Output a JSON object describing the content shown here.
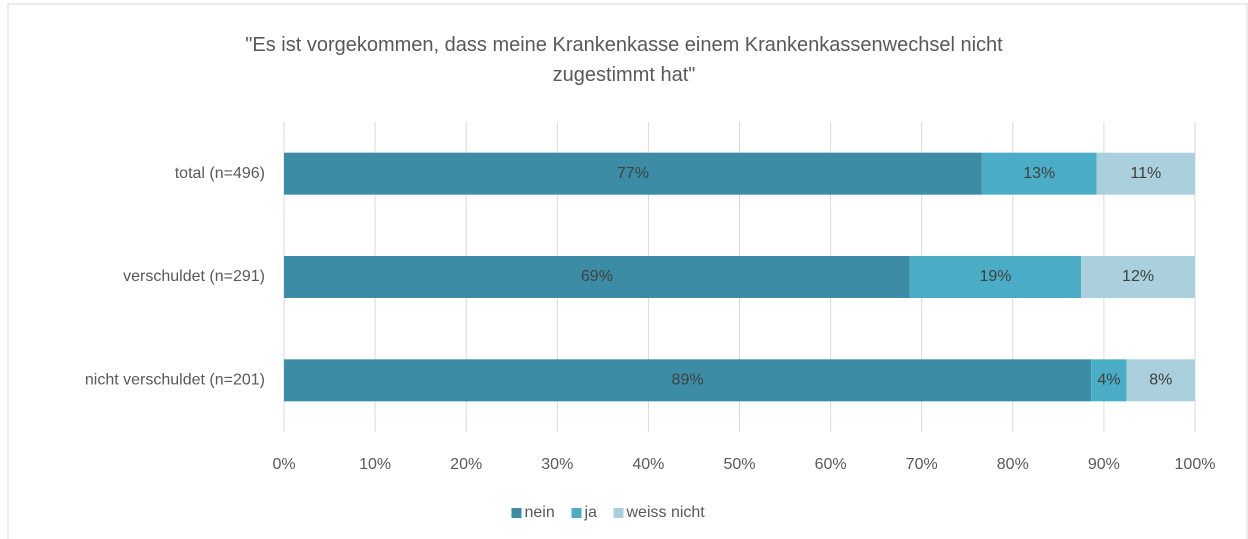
{
  "chart_data": {
    "type": "stacked_bar_horizontal",
    "title": "\"Es ist vorgekommen, dass meine Krankenkasse einem Krankenkassenwechsel nicht zugestimmt hat\"",
    "categories": [
      "total (n=496)",
      "verschuldet (n=291)",
      "nicht verschuldet (n=201)"
    ],
    "series": [
      {
        "name": "nein",
        "color": "#3b8ca4",
        "values": [
          76.6,
          68.7,
          88.6
        ],
        "value_labels": [
          "77%",
          "69%",
          "89%"
        ]
      },
      {
        "name": "ja",
        "color": "#4bacc6",
        "values": [
          12.6,
          18.8,
          3.9
        ],
        "value_labels": [
          "13%",
          "19%",
          "4%"
        ]
      },
      {
        "name": "weiss nicht",
        "color": "#a9d0dc",
        "values": [
          10.8,
          12.5,
          7.5
        ],
        "value_labels": [
          "11%",
          "12%",
          "8%"
        ]
      }
    ],
    "xlim": [
      0,
      100
    ],
    "xticks": [
      {
        "value": 0,
        "label": "0%"
      },
      {
        "value": 10,
        "label": "10%"
      },
      {
        "value": 20,
        "label": "20%"
      },
      {
        "value": 30,
        "label": "30%"
      },
      {
        "value": 40,
        "label": "40%"
      },
      {
        "value": 50,
        "label": "50%"
      },
      {
        "value": 60,
        "label": "60%"
      },
      {
        "value": 70,
        "label": "70%"
      },
      {
        "value": 80,
        "label": "80%"
      },
      {
        "value": 90,
        "label": "90%"
      },
      {
        "value": 100,
        "label": "100%"
      }
    ],
    "grid": true,
    "legend": "bottom"
  }
}
